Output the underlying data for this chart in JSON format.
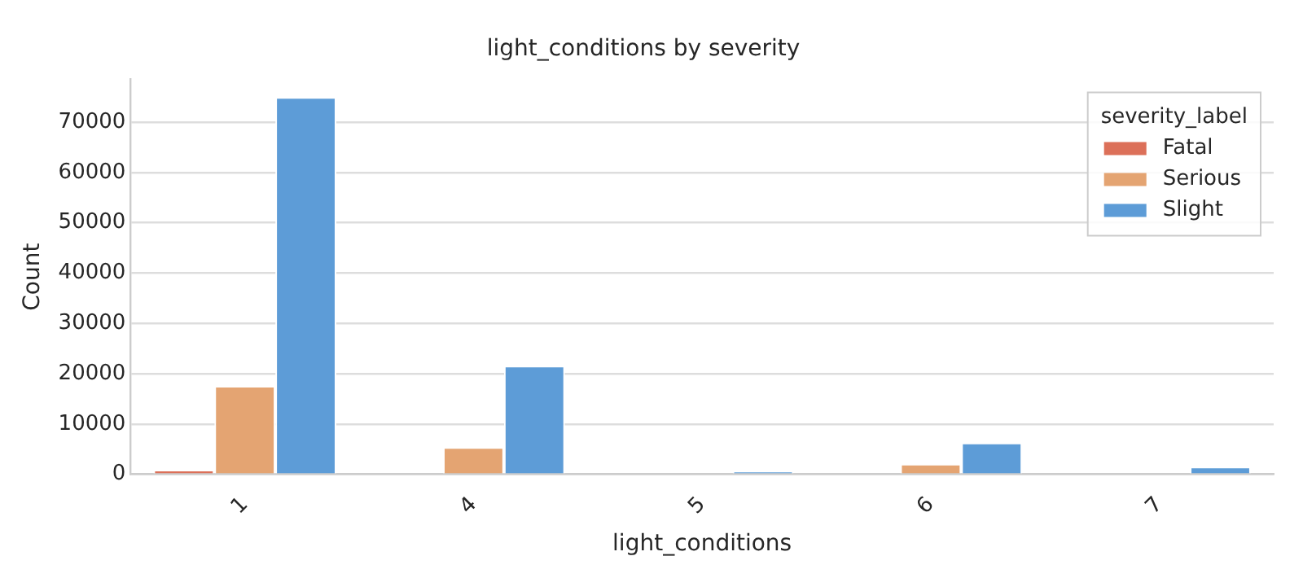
{
  "chart_data": {
    "type": "bar",
    "title": "light_conditions by severity",
    "xlabel": "light_conditions",
    "ylabel": "Count",
    "legend_title": "severity_label",
    "categories": [
      "1",
      "4",
      "5",
      "6",
      "7"
    ],
    "series": [
      {
        "name": "Fatal",
        "color": "#dc7059",
        "values": [
          900,
          0,
          0,
          0,
          0
        ]
      },
      {
        "name": "Serious",
        "color": "#e4a472",
        "values": [
          17600,
          5400,
          0,
          2100,
          0
        ]
      },
      {
        "name": "Slight",
        "color": "#5d9cd7",
        "values": [
          75000,
          21600,
          600,
          6300,
          1500
        ]
      }
    ],
    "ylim": [
      0,
      78500
    ],
    "yticks": [
      0,
      10000,
      20000,
      30000,
      40000,
      50000,
      60000,
      70000
    ],
    "grid": "y",
    "legend": "top right"
  }
}
